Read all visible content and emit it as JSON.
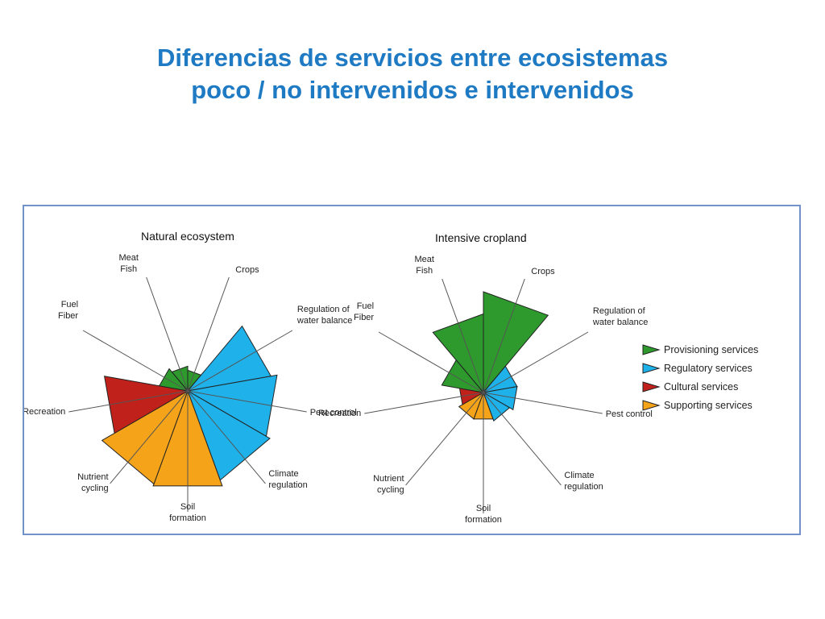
{
  "slide": {
    "title_line1": "Diferencias de servicios entre ecosistemas",
    "title_line2": "poco / no intervenidos e intervenidos"
  },
  "colors": {
    "title": "#1f7ac4",
    "frame_border": "#6f92c9",
    "provisioning": "#2e9a2e",
    "regulatory": "#1fb2ea",
    "cultural": "#c0211a",
    "supporting": "#f5a318"
  },
  "chart_data": [
    {
      "type": "radar",
      "title": "Natural ecosystem",
      "axes": [
        {
          "label": "Meat\nFish",
          "category": "Provisioning services"
        },
        {
          "label": "Crops",
          "category": "Provisioning services"
        },
        {
          "label": "Regulation of\nwater balance",
          "category": "Regulatory services"
        },
        {
          "label": "Pest control",
          "category": "Regulatory services"
        },
        {
          "label": "Climate\nregulation",
          "category": "Regulatory services"
        },
        {
          "label": "Soil\nformation",
          "category": "Supporting services"
        },
        {
          "label": "Nutrient\ncycling",
          "category": "Supporting services"
        },
        {
          "label": "Recreation",
          "category": "Cultural services"
        },
        {
          "label": "Fuel\nFiber",
          "category": "Provisioning services"
        }
      ],
      "values": [
        0.24,
        0.2,
        0.82,
        0.88,
        0.92,
        0.98,
        0.96,
        0.82,
        0.28
      ],
      "legend": null
    },
    {
      "type": "radar",
      "title": "Intensive cropland",
      "axes": [
        {
          "label": "Meat\nFish",
          "category": "Provisioning services"
        },
        {
          "label": "Crops",
          "category": "Provisioning services"
        },
        {
          "label": "Regulation of\nwater balance",
          "category": "Regulatory services"
        },
        {
          "label": "Pest control",
          "category": "Regulatory services"
        },
        {
          "label": "Climate\nregulation",
          "category": "Regulatory services"
        },
        {
          "label": "Soil\nformation",
          "category": "Supporting services"
        },
        {
          "label": "Nutrient\ncycling",
          "category": "Supporting services"
        },
        {
          "label": "Recreation",
          "category": "Cultural services"
        },
        {
          "label": "Fuel\nFiber",
          "category": "Provisioning services"
        }
      ],
      "values": [
        0.78,
        1.0,
        0.34,
        0.34,
        0.3,
        0.28,
        0.28,
        0.24,
        0.42
      ],
      "legend": [
        {
          "label": "Provisioning services",
          "color": "#2e9a2e"
        },
        {
          "label": "Regulatory services",
          "color": "#1fb2ea"
        },
        {
          "label": "Cultural services",
          "color": "#c0211a"
        },
        {
          "label": "Supporting services",
          "color": "#f5a318"
        }
      ]
    }
  ]
}
